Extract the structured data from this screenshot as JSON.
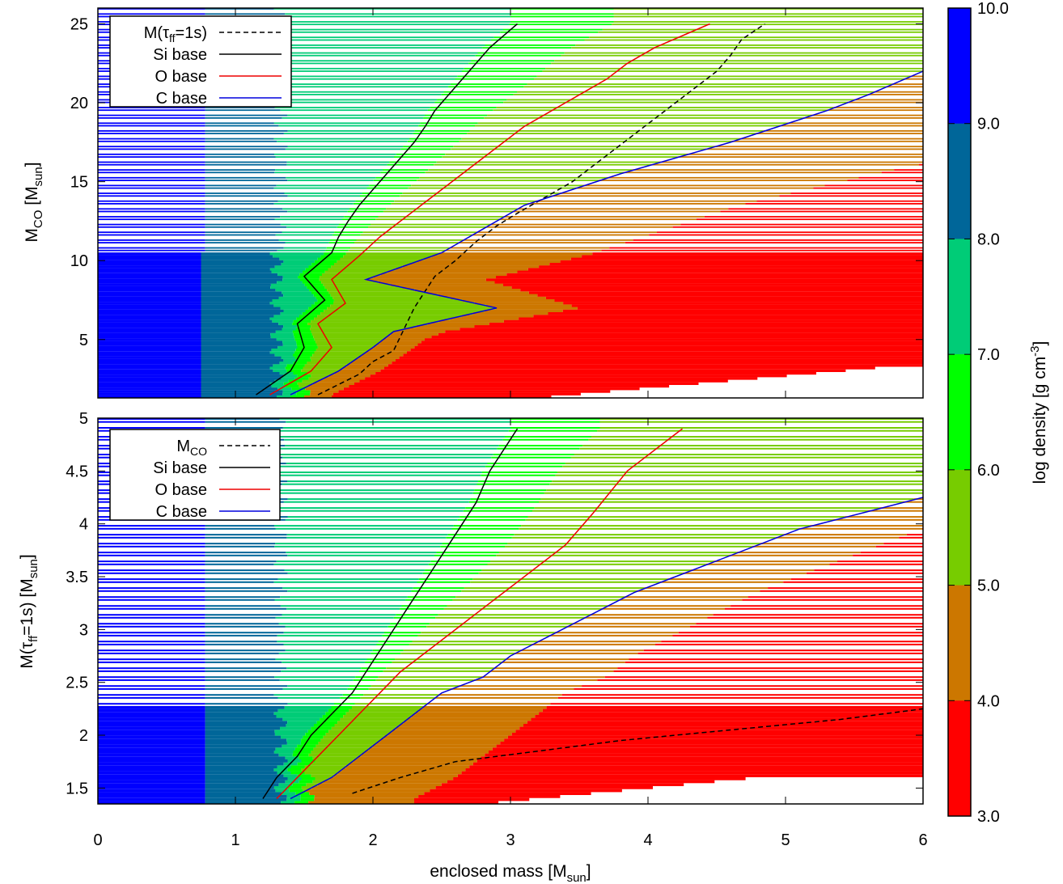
{
  "colorbar": {
    "label_main": "log density [g cm",
    "label_sup": "-3",
    "label_end": "]",
    "ticks": [
      "10.0",
      "9.0",
      "8.0",
      "7.0",
      "6.0",
      "5.0",
      "4.0",
      "3.0"
    ],
    "colors": [
      "#0000ff",
      "#006699",
      "#00cc77",
      "#00ff00",
      "#77cc00",
      "#cc7700",
      "#ff0000"
    ]
  },
  "shared": {
    "xlabel_main": "enclosed mass [M",
    "xlabel_sub": "sun",
    "xlabel_end": "]",
    "xticks": [
      "0",
      "1",
      "2",
      "3",
      "4",
      "5",
      "6"
    ]
  },
  "top": {
    "ylabel_main": "M",
    "ylabel_sub": "CO",
    "ylabel_mid": " [M",
    "ylabel_sub2": "sun",
    "ylabel_end": "]",
    "yticks": [
      "5",
      "10",
      "15",
      "20",
      "25"
    ],
    "legend": [
      {
        "label": "M(τ",
        "sub": "ff",
        "rest": "=1s)",
        "style": "dashed",
        "color": "#000000"
      },
      {
        "label": "Si base",
        "sub": "",
        "rest": "",
        "style": "solid",
        "color": "#000000"
      },
      {
        "label": "O  base",
        "sub": "",
        "rest": "",
        "style": "solid",
        "color": "#ee0000"
      },
      {
        "label": "C  base",
        "sub": "",
        "rest": "",
        "style": "solid",
        "color": "#0000dd"
      }
    ]
  },
  "bottom": {
    "ylabel_main": "M(τ",
    "ylabel_sub": "ff",
    "ylabel_mid": "=1s) [M",
    "ylabel_sub2": "sun",
    "ylabel_end": "]",
    "yticks": [
      "1.5",
      "2",
      "2.5",
      "3",
      "3.5",
      "4",
      "4.5",
      "5"
    ],
    "legend": [
      {
        "label": "M",
        "sub": "CO",
        "rest": "",
        "style": "dashed",
        "color": "#000000"
      },
      {
        "label": "Si base",
        "sub": "",
        "rest": "",
        "style": "solid",
        "color": "#000000"
      },
      {
        "label": "O  base",
        "sub": "",
        "rest": "",
        "style": "solid",
        "color": "#ee0000"
      },
      {
        "label": "C  base",
        "sub": "",
        "rest": "",
        "style": "solid",
        "color": "#0000dd"
      }
    ]
  },
  "chart_data": [
    {
      "type": "heatmap",
      "panel": "top",
      "xlabel": "enclosed mass [Msun]",
      "ylabel": "MCO [Msun]",
      "xlim": [
        0,
        6
      ],
      "ylim": [
        1.3,
        26
      ],
      "colorbar_range": [
        3.0,
        10.0
      ],
      "series": [
        {
          "name": "M(τff=1s)",
          "style": "dashed",
          "color": "#000000",
          "x": [
            1.6,
            1.9,
            2.0,
            2.15,
            2.3,
            2.45,
            2.6,
            2.75,
            2.9,
            3.05,
            3.25,
            3.45,
            3.6,
            3.75,
            3.9,
            4.05,
            4.2,
            4.35,
            4.5,
            4.6,
            4.68,
            4.85
          ],
          "y": [
            1.5,
            2.8,
            3.6,
            4.3,
            7.0,
            9.0,
            10.0,
            11.2,
            12.2,
            13.0,
            14.0,
            15.0,
            16.0,
            17.0,
            18.0,
            19.0,
            20.0,
            21.0,
            22.0,
            23.0,
            24.0,
            25.0
          ]
        },
        {
          "name": "Si base",
          "style": "solid",
          "color": "#000000",
          "x": [
            1.15,
            1.4,
            1.5,
            1.45,
            1.65,
            1.5,
            1.7,
            1.75,
            1.82,
            1.9,
            2.0,
            2.1,
            2.2,
            2.3,
            2.38,
            2.45,
            2.55,
            2.65,
            2.75,
            2.85,
            3.05
          ],
          "y": [
            1.5,
            3.0,
            4.5,
            6.0,
            7.5,
            9.0,
            10.5,
            11.5,
            12.5,
            13.5,
            14.5,
            15.5,
            16.5,
            17.5,
            18.5,
            19.5,
            20.5,
            21.5,
            22.5,
            23.5,
            25.0
          ]
        },
        {
          "name": "O  base",
          "style": "solid",
          "color": "#ee0000",
          "x": [
            1.25,
            1.55,
            1.7,
            1.6,
            1.8,
            1.7,
            1.9,
            2.05,
            2.2,
            2.35,
            2.5,
            2.65,
            2.8,
            2.95,
            3.1,
            3.3,
            3.5,
            3.7,
            3.85,
            4.05,
            4.45
          ],
          "y": [
            1.5,
            3.0,
            4.5,
            6.0,
            7.3,
            8.8,
            10.3,
            11.5,
            12.5,
            13.5,
            14.5,
            15.5,
            16.5,
            17.5,
            18.5,
            19.5,
            20.5,
            21.5,
            22.5,
            23.5,
            25.0
          ]
        },
        {
          "name": "C  base",
          "style": "solid",
          "color": "#0000dd",
          "x": [
            1.4,
            1.75,
            2.0,
            2.15,
            2.9,
            1.95,
            2.5,
            2.8,
            3.1,
            3.45,
            3.8,
            4.2,
            4.6,
            4.95,
            5.3,
            5.6,
            6.0
          ],
          "y": [
            1.5,
            3.0,
            4.5,
            5.5,
            7.0,
            8.8,
            10.5,
            12.0,
            13.5,
            14.5,
            15.5,
            16.5,
            17.5,
            18.5,
            19.5,
            20.5,
            22.0
          ]
        }
      ]
    },
    {
      "type": "heatmap",
      "panel": "bottom",
      "xlabel": "enclosed mass [Msun]",
      "ylabel": "M(τff=1s) [Msun]",
      "xlim": [
        0,
        6
      ],
      "ylim": [
        1.35,
        5.0
      ],
      "colorbar_range": [
        3.0,
        10.0
      ],
      "series": [
        {
          "name": "MCO",
          "style": "dashed",
          "color": "#000000",
          "x": [
            1.85,
            2.2,
            2.6,
            3.2,
            3.8,
            4.6,
            5.4,
            6.0
          ],
          "y": [
            1.45,
            1.6,
            1.75,
            1.85,
            1.95,
            2.05,
            2.15,
            2.25
          ]
        },
        {
          "name": "Si base",
          "style": "solid",
          "color": "#000000",
          "x": [
            1.2,
            1.3,
            1.45,
            1.55,
            1.7,
            1.85,
            1.95,
            2.05,
            2.15,
            2.25,
            2.35,
            2.45,
            2.55,
            2.65,
            2.75,
            2.85,
            3.05
          ],
          "y": [
            1.4,
            1.6,
            1.8,
            2.0,
            2.2,
            2.4,
            2.6,
            2.8,
            3.0,
            3.2,
            3.4,
            3.6,
            3.8,
            4.0,
            4.2,
            4.5,
            4.9
          ]
        },
        {
          "name": "O  base",
          "style": "solid",
          "color": "#ee0000",
          "x": [
            1.3,
            1.45,
            1.6,
            1.75,
            1.9,
            2.05,
            2.2,
            2.4,
            2.6,
            2.8,
            3.0,
            3.2,
            3.4,
            3.6,
            3.85,
            4.25
          ],
          "y": [
            1.4,
            1.6,
            1.8,
            2.0,
            2.2,
            2.4,
            2.6,
            2.8,
            3.0,
            3.2,
            3.4,
            3.6,
            3.8,
            4.1,
            4.5,
            4.9
          ]
        },
        {
          "name": "C  base",
          "style": "solid",
          "color": "#0000dd",
          "x": [
            1.4,
            1.7,
            1.9,
            2.1,
            2.3,
            2.5,
            2.8,
            3.0,
            3.3,
            3.6,
            3.9,
            4.2,
            4.5,
            4.8,
            5.1,
            5.4,
            5.7,
            6.0
          ],
          "y": [
            1.4,
            1.6,
            1.8,
            2.0,
            2.2,
            2.4,
            2.55,
            2.75,
            2.95,
            3.15,
            3.35,
            3.5,
            3.65,
            3.8,
            3.95,
            4.05,
            4.15,
            4.25
          ]
        }
      ]
    }
  ]
}
